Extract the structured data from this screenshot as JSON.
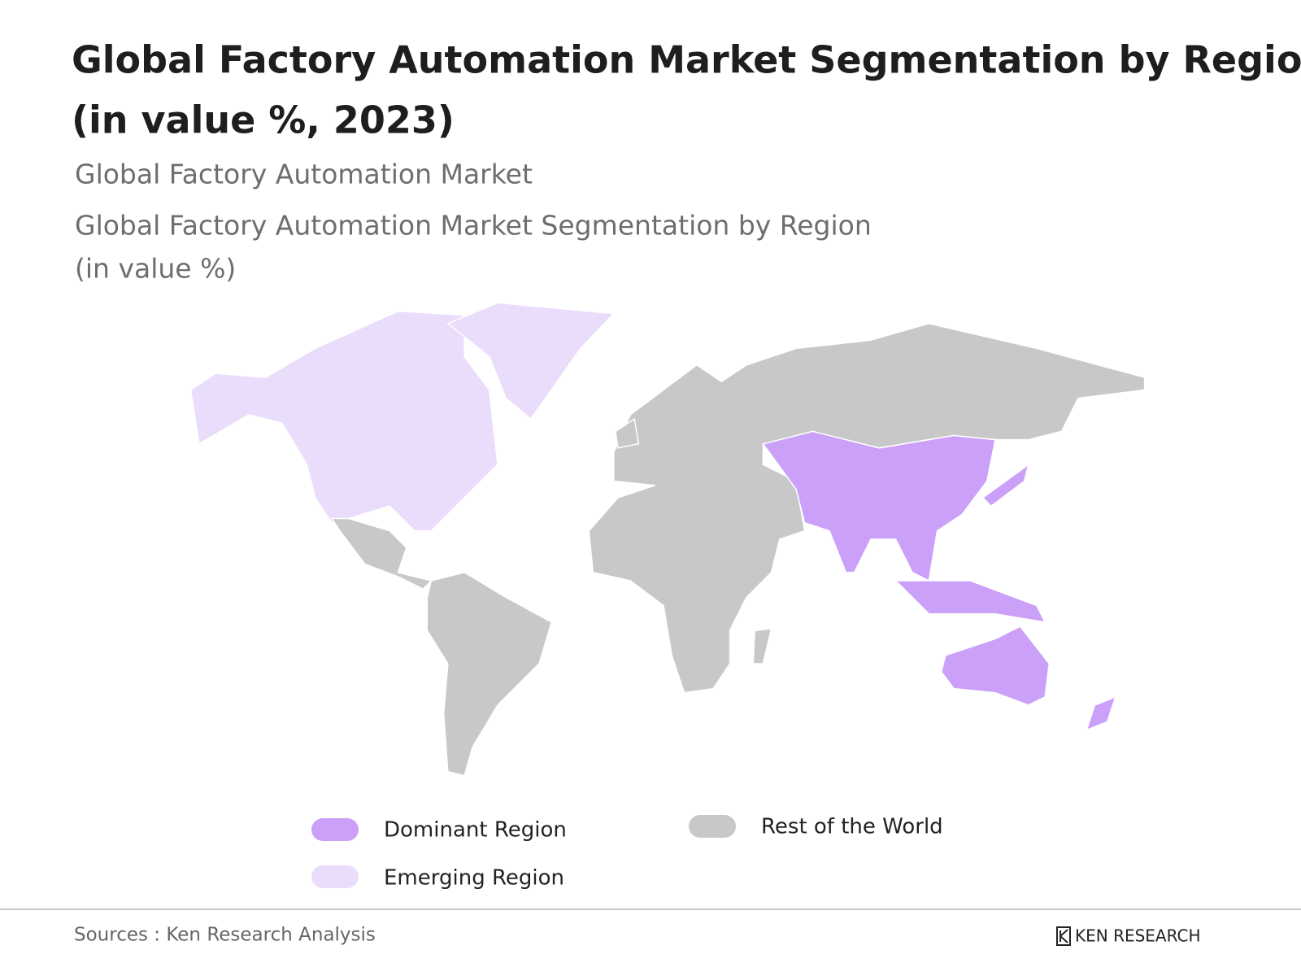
{
  "header": {
    "title_line1": "Global Factory Automation Market Segmentation by Region,",
    "title_line2": "(in value %, 2023)",
    "subtitle": "Global Factory Automation Market",
    "caption_line1": "Global Factory Automation Market Segmentation by Region",
    "caption_line2": "(in value %)"
  },
  "legend": [
    {
      "label": "Dominant Region",
      "color": "#cba0f9"
    },
    {
      "label": "Emerging Region",
      "color": "#e9ddfb"
    },
    {
      "label": "Rest of the World",
      "color": "#c8c8c8"
    }
  ],
  "footer": {
    "source": "Sources : Ken Research Analysis",
    "brand": "KEN RESEARCH"
  }
}
